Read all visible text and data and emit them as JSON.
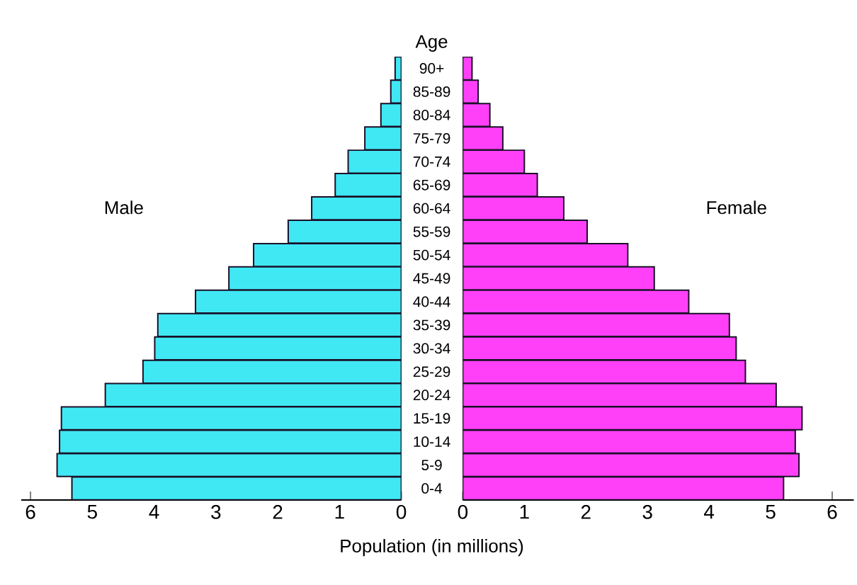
{
  "chart_data": [
    {
      "type": "bar",
      "orientation": "horizontal",
      "xlabel": "Population (in millions)",
      "ylabel": "Age",
      "categories": [
        "90+",
        "85-89",
        "80-84",
        "75-79",
        "70-74",
        "65-69",
        "60-64",
        "55-59",
        "50-54",
        "45-49",
        "40-44",
        "35-39",
        "30-34",
        "25-29",
        "20-24",
        "15-19",
        "10-14",
        "5-9",
        "0-4"
      ],
      "series": [
        {
          "name": "Male",
          "color": "#40e8f4",
          "values": [
            0.1,
            0.17,
            0.33,
            0.59,
            0.86,
            1.07,
            1.45,
            1.83,
            2.39,
            2.79,
            3.33,
            3.94,
            3.99,
            4.18,
            4.79,
            5.5,
            5.53,
            5.57,
            5.33
          ]
        }
      ],
      "xlim": [
        6.15,
        0
      ],
      "xticks": [
        0,
        1,
        2,
        3,
        4,
        5,
        6
      ],
      "legend": false
    },
    {
      "type": "bar",
      "orientation": "horizontal",
      "categories": [
        null,
        null,
        null,
        null,
        null,
        null,
        null,
        null,
        null,
        null,
        null,
        null,
        null,
        null,
        null,
        null,
        null,
        null,
        null
      ],
      "series": [
        {
          "name": "Female",
          "color": "#ff40f8",
          "values": [
            0.15,
            0.25,
            0.44,
            0.65,
            1.0,
            1.21,
            1.64,
            2.02,
            2.68,
            3.11,
            3.67,
            4.33,
            4.44,
            4.59,
            5.09,
            5.51,
            5.4,
            5.46,
            5.21
          ]
        }
      ],
      "xlim": [
        0,
        6.35
      ],
      "xticks": [
        0,
        1,
        2,
        3,
        4,
        5,
        6
      ],
      "tick_labels": "x",
      "legend": false
    }
  ]
}
